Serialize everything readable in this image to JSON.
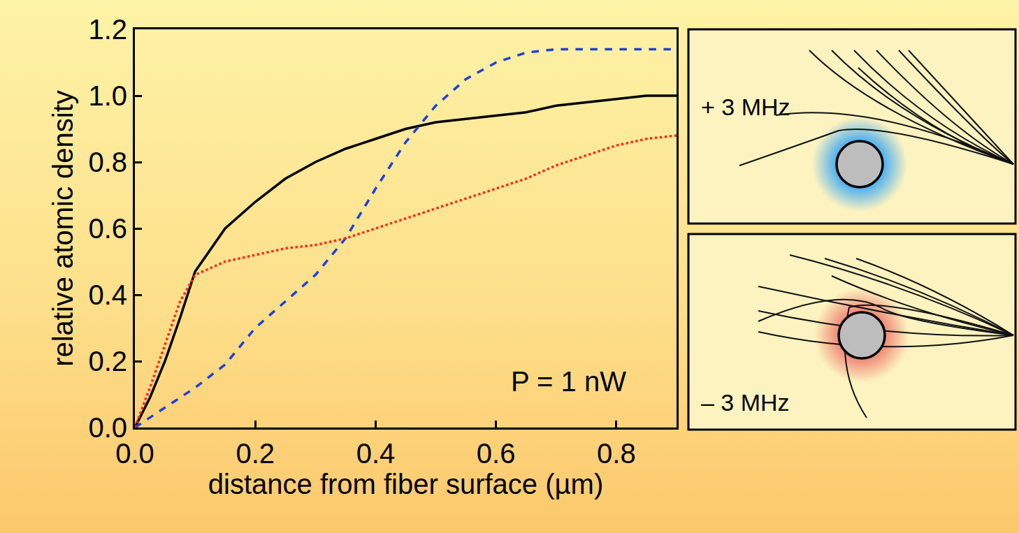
{
  "chart_data": {
    "type": "line",
    "x_label": "distance from fiber surface (µm)",
    "y_label": "relative atomic density",
    "annotation": "P = 1 nW",
    "x": [
      0,
      0.025,
      0.05,
      0.075,
      0.1,
      0.15,
      0.2,
      0.25,
      0.3,
      0.35,
      0.4,
      0.45,
      0.5,
      0.55,
      0.6,
      0.65,
      0.7,
      0.75,
      0.8,
      0.85,
      0.9
    ],
    "series": [
      {
        "color": "#000000",
        "line_style": "solid",
        "values": [
          0,
          0.09,
          0.2,
          0.33,
          0.47,
          0.6,
          0.68,
          0.75,
          0.8,
          0.84,
          0.87,
          0.9,
          0.92,
          0.93,
          0.94,
          0.95,
          0.97,
          0.98,
          0.99,
          1.0,
          1.0
        ]
      },
      {
        "color": "#1f3fe0",
        "line_style": "dashed",
        "values": [
          0,
          0.03,
          0.06,
          0.09,
          0.12,
          0.19,
          0.3,
          0.38,
          0.46,
          0.57,
          0.72,
          0.86,
          0.97,
          1.05,
          1.1,
          1.13,
          1.14,
          1.14,
          1.14,
          1.14,
          1.14
        ]
      },
      {
        "color": "#ff2a1a",
        "line_style": "dotted",
        "values": [
          0,
          0.12,
          0.25,
          0.38,
          0.46,
          0.5,
          0.52,
          0.54,
          0.55,
          0.57,
          0.6,
          0.63,
          0.66,
          0.69,
          0.72,
          0.75,
          0.79,
          0.82,
          0.85,
          0.87,
          0.88
        ]
      }
    ],
    "xlim": [
      0,
      0.9
    ],
    "xticks": [
      {
        "value": 0,
        "label": "0.0"
      },
      0.2,
      0.4,
      0.6,
      0.8
    ],
    "ylim": [
      0,
      1.2
    ],
    "yticks": [
      {
        "value": 0,
        "label": "0.0"
      },
      0.2,
      0.4,
      0.6,
      0.8,
      {
        "value": 1,
        "label": "1.0"
      },
      1.2
    ],
    "grid": false
  },
  "panels": [
    {
      "label": "+ 3 MHz",
      "color": "#4fb0f0"
    },
    {
      "label": "– 3 MHz",
      "color": "#f08a78"
    }
  ]
}
